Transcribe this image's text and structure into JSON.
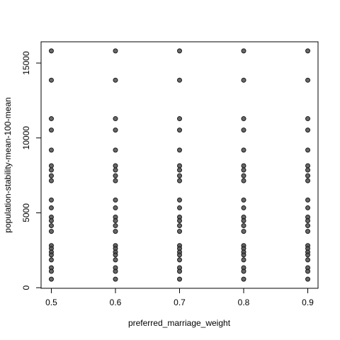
{
  "chart_data": {
    "type": "scatter",
    "x_label": "preferred_marriage_weight",
    "y_label": "population-stability-mean-100-mean",
    "xlim": [
      0.484,
      0.916
    ],
    "xticks": [
      0.5,
      0.6,
      0.7,
      0.8,
      0.9
    ],
    "ylim": [
      -39,
      16420
    ],
    "yticks": [
      0,
      5000,
      10000,
      15000
    ],
    "color": "#4d4d4d",
    "x": [
      0.5,
      0.5,
      0.5,
      0.5,
      0.5,
      0.5,
      0.5,
      0.5,
      0.5,
      0.5,
      0.5,
      0.5,
      0.5,
      0.5,
      0.5,
      0.5,
      0.5,
      0.5,
      0.5,
      0.5,
      0.5,
      0.5,
      0.5,
      0.6,
      0.6,
      0.6,
      0.6,
      0.6,
      0.6,
      0.6,
      0.6,
      0.6,
      0.6,
      0.6,
      0.6,
      0.6,
      0.6,
      0.6,
      0.6,
      0.6,
      0.6,
      0.6,
      0.6,
      0.6,
      0.6,
      0.6,
      0.7,
      0.7,
      0.7,
      0.7,
      0.7,
      0.7,
      0.7,
      0.7,
      0.7,
      0.7,
      0.7,
      0.7,
      0.7,
      0.7,
      0.7,
      0.7,
      0.7,
      0.7,
      0.7,
      0.7,
      0.7,
      0.7,
      0.7,
      0.8,
      0.8,
      0.8,
      0.8,
      0.8,
      0.8,
      0.8,
      0.8,
      0.8,
      0.8,
      0.8,
      0.8,
      0.8,
      0.8,
      0.8,
      0.8,
      0.8,
      0.8,
      0.8,
      0.8,
      0.8,
      0.8,
      0.8,
      0.9,
      0.9,
      0.9,
      0.9,
      0.9,
      0.9,
      0.9,
      0.9,
      0.9,
      0.9,
      0.9,
      0.9,
      0.9,
      0.9,
      0.9,
      0.9,
      0.9,
      0.9,
      0.9,
      0.9,
      0.9,
      0.9,
      0.9
    ],
    "y": [
      15810,
      13857,
      11286,
      10524,
      9190,
      8143,
      7857,
      7476,
      7143,
      5857,
      5333,
      4714,
      4476,
      4143,
      3762,
      2810,
      2619,
      2381,
      2190,
      1857,
      1333,
      1095,
      571,
      15810,
      13857,
      11286,
      10524,
      9190,
      8143,
      7857,
      7476,
      7143,
      5857,
      5333,
      4714,
      4476,
      4143,
      3762,
      2810,
      2619,
      2381,
      2190,
      1857,
      1333,
      1095,
      571,
      15810,
      13857,
      11286,
      10524,
      9190,
      8143,
      7857,
      7476,
      7143,
      5857,
      5333,
      4714,
      4476,
      4143,
      3762,
      2810,
      2619,
      2381,
      2190,
      1857,
      1333,
      1095,
      571,
      15810,
      13857,
      11286,
      10524,
      9190,
      8143,
      7857,
      7476,
      7143,
      5857,
      5333,
      4714,
      4476,
      4143,
      3762,
      2810,
      2619,
      2381,
      2190,
      1857,
      1333,
      1095,
      571,
      15810,
      13857,
      11286,
      10524,
      9190,
      8143,
      7857,
      7476,
      7143,
      5857,
      5333,
      4714,
      4476,
      4143,
      3762,
      2810,
      2619,
      2381,
      2190,
      1857,
      1333,
      1095,
      571
    ]
  }
}
